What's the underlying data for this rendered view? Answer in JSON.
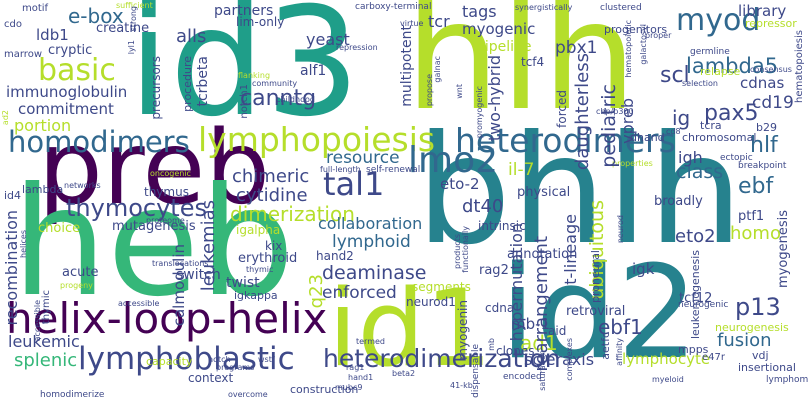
{
  "colors": {
    "background": "#ffffff",
    "palette": [
      "#440154",
      "#482878",
      "#3e4989",
      "#31688e",
      "#26828e",
      "#1f9e89",
      "#35b779",
      "#6ece58",
      "#b5de2b",
      "#fde725"
    ]
  },
  "words": [
    {
      "text": "id3",
      "color": "#1f9e89"
    },
    {
      "text": "hlh",
      "color": "#b5de2b"
    },
    {
      "text": "preb",
      "color": "#440154"
    },
    {
      "text": "heb",
      "color": "#35b779"
    },
    {
      "text": "bhlh",
      "color": "#26828e"
    },
    {
      "text": "id1",
      "color": "#b5de2b"
    },
    {
      "text": "id2",
      "color": "#26828e"
    },
    {
      "text": "helix-loop-helix",
      "color": "#440154"
    },
    {
      "text": "homodimers",
      "color": "#31688e"
    },
    {
      "text": "lymphopoiesis",
      "color": "#b5de2b"
    },
    {
      "text": "heterodimers",
      "color": "#31688e"
    },
    {
      "text": "lmo2",
      "color": "#31688e"
    },
    {
      "text": "tal1",
      "color": "#3e4989"
    },
    {
      "text": "myod",
      "color": "#31688e"
    },
    {
      "text": "lymphoblastic",
      "color": "#3e4989"
    },
    {
      "text": "heterodimerization",
      "color": "#3e4989"
    },
    {
      "text": "basic",
      "color": "#b5de2b"
    },
    {
      "text": "thymocytes",
      "color": "#3e4989"
    },
    {
      "text": "dimerization",
      "color": "#b5de2b"
    },
    {
      "text": "e-box",
      "color": "#31688e"
    },
    {
      "text": "lambda5",
      "color": "#31688e"
    },
    {
      "text": "pax5",
      "color": "#3e4989"
    },
    {
      "text": "hlf",
      "color": "#31688e"
    },
    {
      "text": "ebf",
      "color": "#31688e"
    },
    {
      "text": "p13",
      "color": "#3e4989"
    },
    {
      "text": "fusion",
      "color": "#31688e"
    },
    {
      "text": "ebf1",
      "color": "#3e4989"
    },
    {
      "text": "ad1",
      "color": "#b5de2b"
    },
    {
      "text": "mb-1",
      "color": "#3e4989"
    },
    {
      "text": "q23",
      "color": "#b5de2b"
    },
    {
      "text": "commitment",
      "color": "#3e4989"
    },
    {
      "text": "immunoglobulin",
      "color": "#3e4989"
    },
    {
      "text": "portion",
      "color": "#b5de2b"
    },
    {
      "text": "canntg",
      "color": "#3e4989"
    },
    {
      "text": "chimeric",
      "color": "#3e4989"
    },
    {
      "text": "cytidine",
      "color": "#3e4989"
    },
    {
      "text": "resource",
      "color": "#31688e"
    },
    {
      "text": "deaminase",
      "color": "#3e4989"
    },
    {
      "text": "enforced",
      "color": "#3e4989"
    },
    {
      "text": "rearrangement",
      "color": "#3e4989"
    },
    {
      "text": "hypermutation",
      "color": "#3e4989"
    },
    {
      "text": "scleraxis",
      "color": "#3e4989"
    },
    {
      "text": "lymphocyte",
      "color": "#b5de2b"
    },
    {
      "text": "splenic",
      "color": "#35b779"
    },
    {
      "text": "leukemic",
      "color": "#3e4989"
    },
    {
      "text": "recombination",
      "color": "#3e4989"
    },
    {
      "text": "leukemias",
      "color": "#3e4989"
    },
    {
      "text": "calmodulin",
      "color": "#3e4989"
    },
    {
      "text": "lymphoid",
      "color": "#31688e"
    },
    {
      "text": "collaboration",
      "color": "#31688e"
    },
    {
      "text": "dt40",
      "color": "#3e4989"
    },
    {
      "text": "class",
      "color": "#31688e"
    },
    {
      "text": "igh",
      "color": "#3e4989"
    },
    {
      "text": "eto2",
      "color": "#3e4989"
    },
    {
      "text": "eto-2",
      "color": "#3e4989"
    },
    {
      "text": "il-7",
      "color": "#b5de2b"
    },
    {
      "text": "two-hybrid",
      "color": "#3e4989"
    },
    {
      "text": "pediatric",
      "color": "#3e4989"
    },
    {
      "text": "daughterless",
      "color": "#3e4989"
    },
    {
      "text": "vpreb",
      "color": "#3e4989"
    },
    {
      "text": "scl",
      "color": "#3e4989"
    },
    {
      "text": "ig",
      "color": "#3e4989"
    },
    {
      "text": "cd19",
      "color": "#3e4989"
    },
    {
      "text": "myogenic",
      "color": "#3e4989"
    },
    {
      "text": "tags",
      "color": "#3e4989"
    },
    {
      "text": "tcr",
      "color": "#3e4989"
    },
    {
      "text": "pbx1",
      "color": "#3e4989"
    },
    {
      "text": "library",
      "color": "#3e4989"
    },
    {
      "text": "cdnas",
      "color": "#3e4989"
    },
    {
      "text": "alls",
      "color": "#3e4989"
    },
    {
      "text": "yeast",
      "color": "#3e4989"
    },
    {
      "text": "partners",
      "color": "#3e4989"
    },
    {
      "text": "creatine",
      "color": "#3e4989"
    },
    {
      "text": "ldb1",
      "color": "#3e4989"
    },
    {
      "text": "cryptic",
      "color": "#3e4989"
    },
    {
      "text": "alf1",
      "color": "#3e4989"
    },
    {
      "text": "lim-only",
      "color": "#3e4989"
    },
    {
      "text": "multipotent",
      "color": "#3e4989"
    },
    {
      "text": "tcf4",
      "color": "#3e4989"
    },
    {
      "text": "pipeline",
      "color": "#b5de2b"
    },
    {
      "text": "tcrbeta",
      "color": "#3e4989"
    },
    {
      "text": "precursors",
      "color": "#3e4989"
    },
    {
      "text": "procedure",
      "color": "#3e4989"
    },
    {
      "text": "notch1",
      "color": "#3e4989"
    },
    {
      "text": "thymus",
      "color": "#3e4989"
    },
    {
      "text": "lambda",
      "color": "#3e4989"
    },
    {
      "text": "igalpha",
      "color": "#b5de2b"
    },
    {
      "text": "kix",
      "color": "#3e4989"
    },
    {
      "text": "hand2",
      "color": "#3e4989"
    },
    {
      "text": "erythroid",
      "color": "#3e4989"
    },
    {
      "text": "mutagenesis",
      "color": "#3e4989"
    },
    {
      "text": "choice",
      "color": "#b5de2b"
    },
    {
      "text": "acute",
      "color": "#3e4989"
    },
    {
      "text": "switch",
      "color": "#3e4989"
    },
    {
      "text": "twist",
      "color": "#3e4989"
    },
    {
      "text": "igkappa",
      "color": "#3e4989"
    },
    {
      "text": "ubiquitous",
      "color": "#b5de2b"
    },
    {
      "text": "t-lineage",
      "color": "#3e4989"
    },
    {
      "text": "homo",
      "color": "#b5de2b"
    },
    {
      "text": "igk",
      "color": "#3e4989"
    },
    {
      "text": "myogenesis",
      "color": "#3e4989"
    },
    {
      "text": "ptf1",
      "color": "#3e4989"
    },
    {
      "text": "tcf12",
      "color": "#3e4989"
    },
    {
      "text": "neurogenesis",
      "color": "#b5de2b"
    },
    {
      "text": "leukemogenesis",
      "color": "#3e4989"
    },
    {
      "text": "mpps",
      "color": "#3e4989"
    },
    {
      "text": "e47r",
      "color": "#3e4989"
    },
    {
      "text": "vdj",
      "color": "#3e4989"
    },
    {
      "text": "insertional",
      "color": "#3e4989"
    },
    {
      "text": "lymphoma",
      "color": "#3e4989"
    },
    {
      "text": "retroviral",
      "color": "#3e4989"
    },
    {
      "text": "proneural",
      "color": "#3e4989"
    },
    {
      "text": "rag2",
      "color": "#3e4989"
    },
    {
      "text": "cdna",
      "color": "#3e4989"
    },
    {
      "text": "clones",
      "color": "#3e4989"
    },
    {
      "text": "aid",
      "color": "#3e4989"
    },
    {
      "text": "myogenin",
      "color": "#3e4989"
    },
    {
      "text": "neurod1",
      "color": "#3e4989"
    },
    {
      "text": "segments",
      "color": "#b5de2b"
    },
    {
      "text": "physical",
      "color": "#3e4989"
    },
    {
      "text": "annotation",
      "color": "#3e4989"
    },
    {
      "text": "intrinsic",
      "color": "#3e4989"
    },
    {
      "text": "broadly",
      "color": "#3e4989"
    },
    {
      "text": "bhlh-domain",
      "color": "#3e4989"
    },
    {
      "text": "library2",
      "color": "#3e4989"
    },
    {
      "text": "motif",
      "color": "#3e4989"
    },
    {
      "text": "cdo",
      "color": "#3e4989"
    },
    {
      "text": "marrow",
      "color": "#3e4989"
    },
    {
      "text": "sufficient",
      "color": "#3e4989"
    },
    {
      "text": "strong",
      "color": "#3e4989"
    },
    {
      "text": "carboxy-terminal",
      "color": "#3e4989"
    },
    {
      "text": "synergistically",
      "color": "#3e4989"
    },
    {
      "text": "clustered",
      "color": "#3e4989"
    },
    {
      "text": "progenitors",
      "color": "#3e4989"
    },
    {
      "text": "repressor",
      "color": "#3e4989"
    },
    {
      "text": "relapse",
      "color": "#3e4989"
    },
    {
      "text": "consensus",
      "color": "#3e4989"
    },
    {
      "text": "hematopoiesis",
      "color": "#3e4989"
    },
    {
      "text": "selection",
      "color": "#3e4989"
    },
    {
      "text": "germline",
      "color": "#3e4989"
    },
    {
      "text": "proper",
      "color": "#3e4989"
    },
    {
      "text": "tcra",
      "color": "#3e4989"
    },
    {
      "text": "dhand",
      "color": "#3e4989"
    },
    {
      "text": "chromosomal",
      "color": "#3e4989"
    },
    {
      "text": "b29",
      "color": "#3e4989"
    },
    {
      "text": "cd8",
      "color": "#3e4989"
    },
    {
      "text": "ectopic",
      "color": "#3e4989"
    },
    {
      "text": "breakpoint",
      "color": "#3e4989"
    },
    {
      "text": "full-length",
      "color": "#3e4989"
    },
    {
      "text": "self-renewal",
      "color": "#3e4989"
    },
    {
      "text": "properties",
      "color": "#3e4989"
    },
    {
      "text": "proteome",
      "color": "#3e4989"
    },
    {
      "text": "oncogenic",
      "color": "#3e4989"
    },
    {
      "text": "networks",
      "color": "#3e4989"
    },
    {
      "text": "helices",
      "color": "#3e4989"
    },
    {
      "text": "id4",
      "color": "#3e4989"
    },
    {
      "text": "progeny",
      "color": "#3e4989"
    },
    {
      "text": "accessible",
      "color": "#3e4989"
    },
    {
      "text": "thymic",
      "color": "#3e4989"
    },
    {
      "text": "translocations",
      "color": "#3e4989"
    },
    {
      "text": "capacity",
      "color": "#3e4989"
    },
    {
      "text": "notch",
      "color": "#3e4989"
    },
    {
      "text": "programs",
      "color": "#b5de2b"
    },
    {
      "text": "wstf",
      "color": "#3e4989"
    },
    {
      "text": "context",
      "color": "#3e4989"
    },
    {
      "text": "homodimerize",
      "color": "#3e4989"
    },
    {
      "text": "overcome",
      "color": "#3e4989"
    },
    {
      "text": "construction",
      "color": "#3e4989"
    },
    {
      "text": "mubc9",
      "color": "#3e4989"
    },
    {
      "text": "rag1",
      "color": "#3e4989"
    },
    {
      "text": "hand1",
      "color": "#3e4989"
    },
    {
      "text": "beta2",
      "color": "#3e4989"
    },
    {
      "text": "termed",
      "color": "#3e4989"
    },
    {
      "text": "41-kb",
      "color": "#3e4989"
    },
    {
      "text": "encoded",
      "color": "#3e4989"
    },
    {
      "text": "complexes",
      "color": "#3e4989"
    },
    {
      "text": "affinity",
      "color": "#3e4989"
    },
    {
      "text": "myeloid",
      "color": "#3e4989"
    },
    {
      "text": "neurogenic",
      "color": "#3e4989"
    },
    {
      "text": "aetfc",
      "color": "#3e4989"
    },
    {
      "text": "cbp/p300",
      "color": "#3e4989"
    },
    {
      "text": "flanking",
      "color": "#3e4989"
    },
    {
      "text": "community",
      "color": "#3e4989"
    },
    {
      "text": "childhood",
      "color": "#b5de2b"
    },
    {
      "text": "repression",
      "color": "#3e4989"
    },
    {
      "text": "virtue",
      "color": "#3e4989"
    },
    {
      "text": "lyl1",
      "color": "#3e4989"
    },
    {
      "text": "ad2",
      "color": "#3e4989"
    },
    {
      "text": "forced",
      "color": "#3e4989"
    },
    {
      "text": "promyogenic",
      "color": "#3e4989"
    },
    {
      "text": "wnt",
      "color": "#3e4989"
    },
    {
      "text": "propose",
      "color": "#3e4989"
    },
    {
      "text": "products",
      "color": "#3e4989"
    },
    {
      "text": "functionally",
      "color": "#3e4989"
    },
    {
      "text": "neurod",
      "color": "#3e4989"
    },
    {
      "text": "saturation",
      "color": "#3e4989"
    },
    {
      "text": "dispensable",
      "color": "#3e4989"
    },
    {
      "text": "mb",
      "color": "#3e4989"
    },
    {
      "text": "galnac",
      "color": "#3e4989"
    },
    {
      "text": "galactosyl",
      "color": "#3e4989"
    },
    {
      "text": "hematopoietic",
      "color": "#3e4989"
    },
    {
      "text": "rate",
      "color": "#3e4989"
    },
    {
      "text": "failure",
      "color": "#3e4989"
    }
  ]
}
